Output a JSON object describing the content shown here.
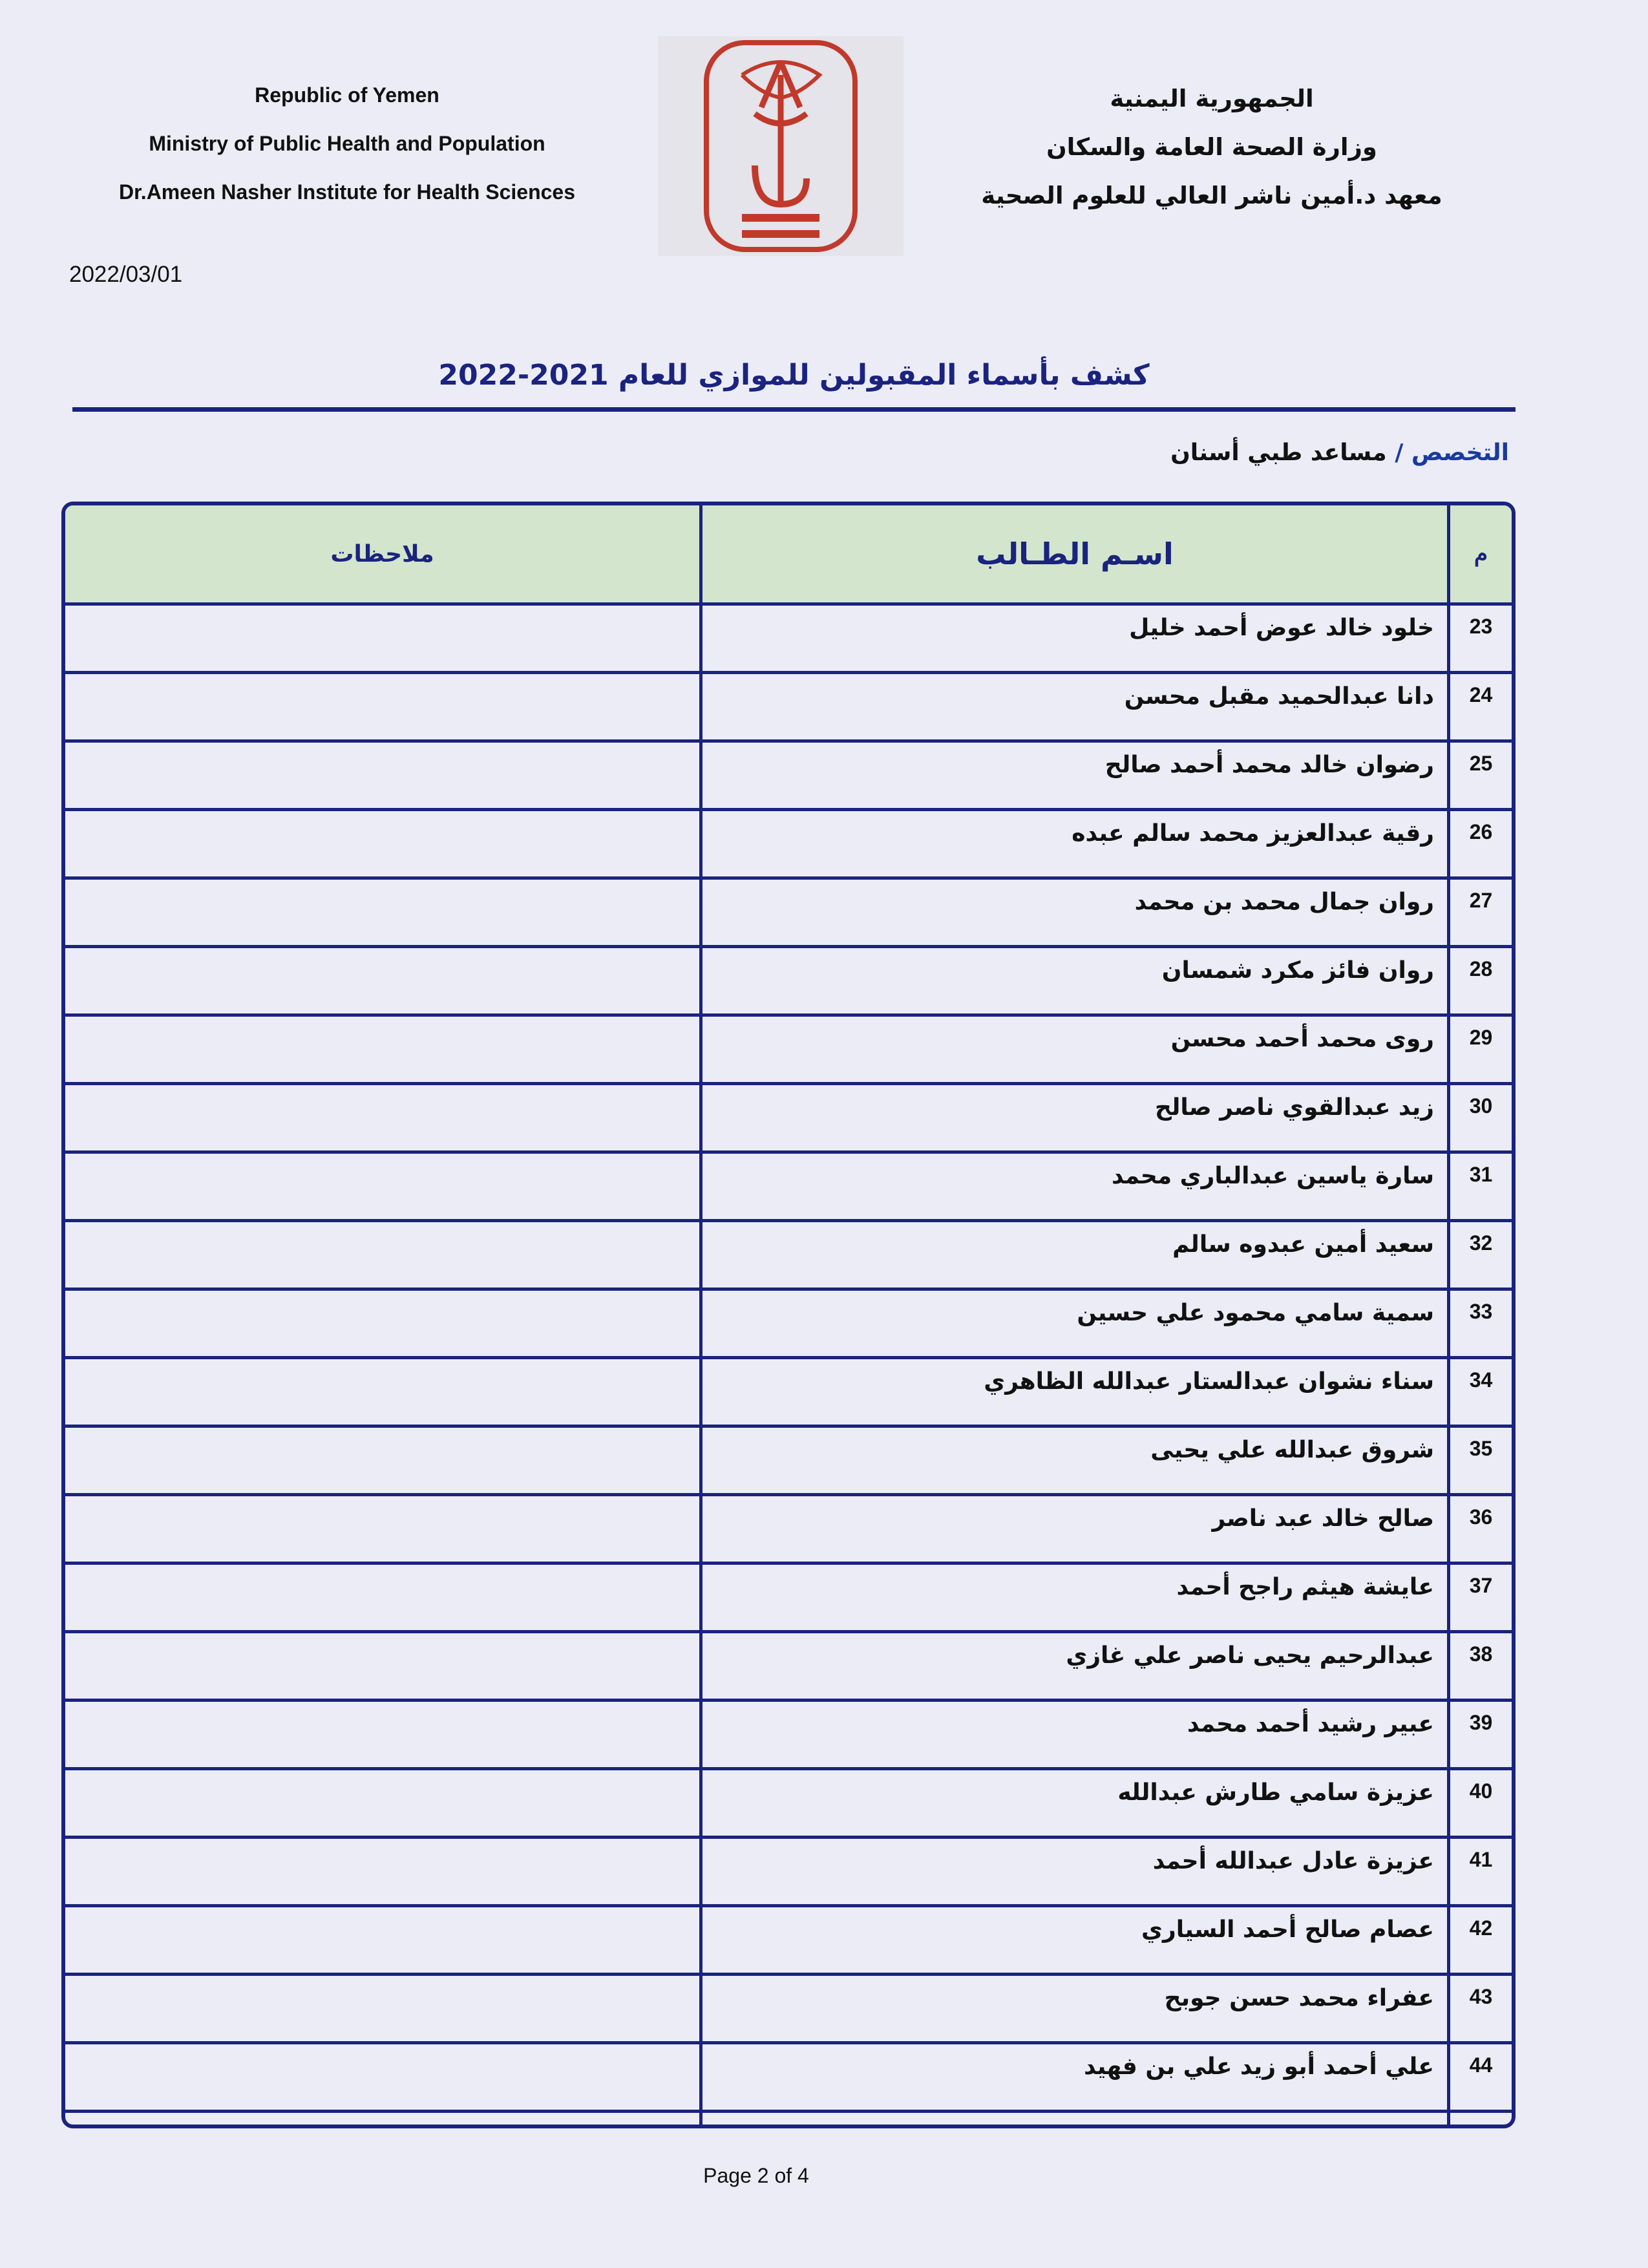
{
  "header": {
    "en": [
      "Republic of Yemen",
      "Ministry of Public Health and Population",
      "Dr.Ameen Nasher Institute for Health Sciences"
    ],
    "ar": [
      "الجمهورية اليمنية",
      "وزارة الصحة العامة والسكان",
      "معهد د.أمين ناشر العالي للعلوم الصحية"
    ],
    "logo_color": "#c0392b"
  },
  "date": "2022/03/01",
  "title": "كشف بأسماء المقبولين للموازي للعام 2021-2022",
  "specialty": {
    "label": "التخصص /",
    "value": "مساعد طبي أسنان"
  },
  "table": {
    "columns": {
      "num": "م",
      "name": "اسـم الطـالب",
      "notes": "ملاحظات"
    },
    "rows": [
      {
        "num": "23",
        "name": "خلود خالد عوض أحمد خليل"
      },
      {
        "num": "24",
        "name": "دانا عبدالحميد مقبل محسن"
      },
      {
        "num": "25",
        "name": "رضوان خالد محمد أحمد صالح"
      },
      {
        "num": "26",
        "name": "رقية عبدالعزيز محمد سالم عبده"
      },
      {
        "num": "27",
        "name": "روان جمال محمد بن محمد"
      },
      {
        "num": "28",
        "name": "روان فائز مكرد شمسان"
      },
      {
        "num": "29",
        "name": "روى محمد أحمد محسن"
      },
      {
        "num": "30",
        "name": "زيد عبدالقوي ناصر صالح"
      },
      {
        "num": "31",
        "name": "سارة ياسين عبدالباري محمد"
      },
      {
        "num": "32",
        "name": "سعيد أمين عبدوه سالم"
      },
      {
        "num": "33",
        "name": "سمية سامي محمود علي حسين"
      },
      {
        "num": "34",
        "name": "سناء نشوان عبدالستار عبدالله الظاهري"
      },
      {
        "num": "35",
        "name": "شروق عبدالله علي يحيى"
      },
      {
        "num": "36",
        "name": "صالح خالد عبد ناصر"
      },
      {
        "num": "37",
        "name": "عايشة هيثم راجح أحمد"
      },
      {
        "num": "38",
        "name": "عبدالرحيم يحيى ناصر علي غازي"
      },
      {
        "num": "39",
        "name": "عبير رشيد أحمد محمد"
      },
      {
        "num": "40",
        "name": "عزيزة سامي طارش عبدالله"
      },
      {
        "num": "41",
        "name": "عزيزة عادل عبدالله أحمد"
      },
      {
        "num": "42",
        "name": "عصام صالح أحمد السياري"
      },
      {
        "num": "43",
        "name": "عفراء محمد حسن جوبح"
      },
      {
        "num": "44",
        "name": "علي أحمد أبو زيد علي بن فهيد"
      }
    ]
  },
  "footer": {
    "page": "Page 2 of 4"
  }
}
